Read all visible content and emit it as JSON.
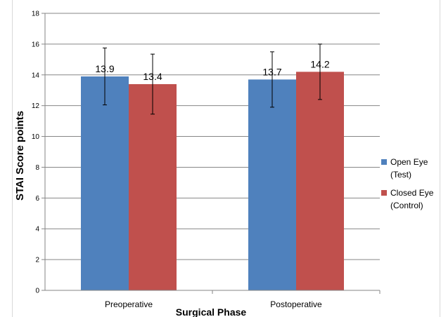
{
  "chart_data": {
    "type": "bar",
    "title": "",
    "xlabel": "Surgical Phase",
    "ylabel": "STAI Score points",
    "categories": [
      "Preoperative",
      "Postoperative"
    ],
    "ylim": [
      0,
      18
    ],
    "yticks": [
      0,
      2,
      4,
      6,
      8,
      10,
      12,
      14,
      16,
      18
    ],
    "grid": true,
    "legend_position": "right",
    "series": [
      {
        "name": "Open Eye (Test)",
        "name_lines": [
          "Open Eye",
          "(Test)"
        ],
        "color": "#4f81bd",
        "values": [
          13.9,
          13.7
        ],
        "labels": [
          "13.9",
          "13.7"
        ],
        "error": [
          1.85,
          1.8
        ]
      },
      {
        "name": "Closed Eye (Control)",
        "name_lines": [
          "Closed Eye",
          "(Control)"
        ],
        "color": "#c0504d",
        "values": [
          13.4,
          14.2
        ],
        "labels": [
          "13.4",
          "14.2"
        ],
        "error": [
          1.95,
          1.8
        ]
      }
    ]
  }
}
